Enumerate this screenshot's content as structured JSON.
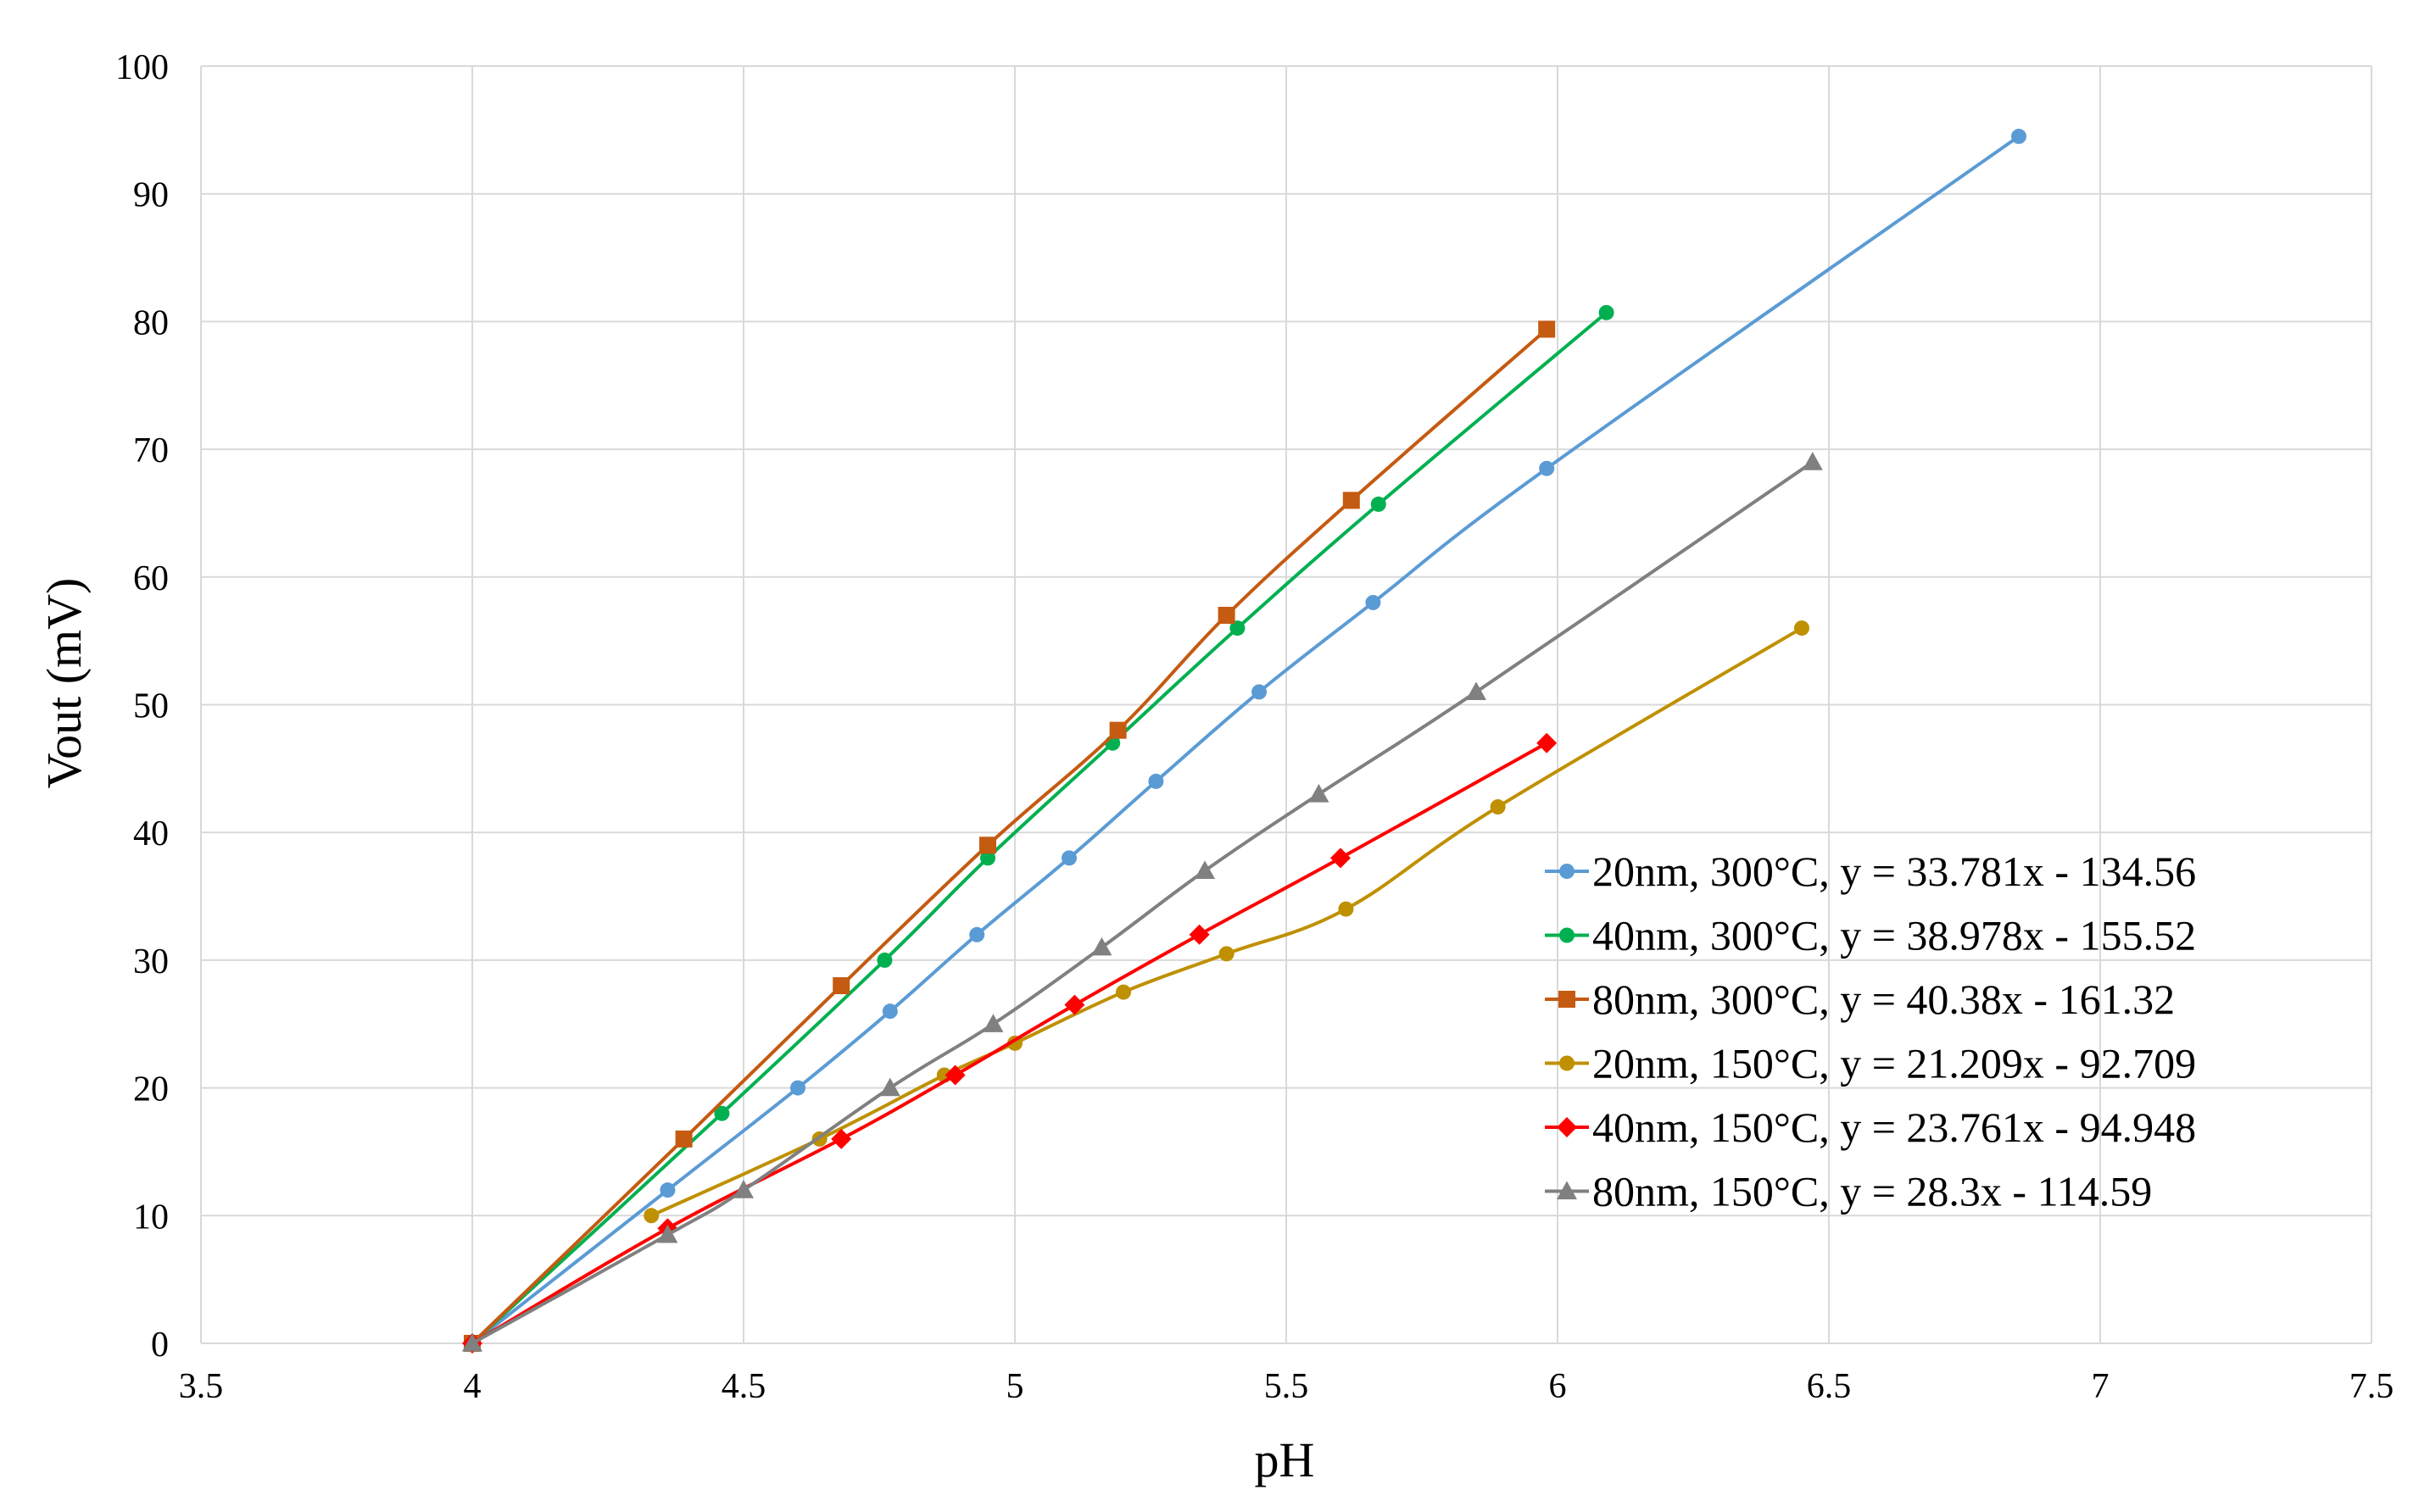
{
  "chart_data": {
    "type": "line",
    "title": "",
    "xlabel": "pH",
    "ylabel": "Vout (mV)",
    "xlim": [
      3.5,
      7.5
    ],
    "ylim": [
      0,
      100
    ],
    "xticks": [
      3.5,
      4,
      4.5,
      5,
      5.5,
      6,
      6.5,
      7,
      7.5
    ],
    "xtick_labels": [
      "3.5",
      "4",
      "4.5",
      "5",
      "5.5",
      "6",
      "6.5",
      "7",
      "7.5"
    ],
    "yticks": [
      0,
      10,
      20,
      30,
      40,
      50,
      60,
      70,
      80,
      90,
      100
    ],
    "ytick_labels": [
      "0",
      "10",
      "20",
      "30",
      "40",
      "50",
      "60",
      "70",
      "80",
      "90",
      "100"
    ],
    "grid": true,
    "legend_position": "bottom-right",
    "series": [
      {
        "name": "20nm, 300°C, y = 33.781x - 134.56",
        "color": "#5B9BD5",
        "marker": "circle",
        "x": [
          4,
          4.36,
          4.6,
          4.77,
          4.93,
          5.1,
          5.26,
          5.45,
          5.66,
          5.98,
          6.85
        ],
        "y": [
          0,
          12,
          20,
          26,
          32,
          38,
          44,
          51,
          58,
          68.5,
          94.5
        ]
      },
      {
        "name": "40nm, 300°C, y = 38.978x - 155.52",
        "color": "#00B050",
        "marker": "circle",
        "x": [
          4,
          4.46,
          4.76,
          4.95,
          5.18,
          5.41,
          5.67,
          6.09
        ],
        "y": [
          0,
          18,
          30,
          38,
          47,
          56,
          65.7,
          80.7
        ]
      },
      {
        "name": "80nm, 300°C, y = 40.38x - 161.32",
        "color": "#C55A11",
        "marker": "square",
        "x": [
          4,
          4.39,
          4.68,
          4.95,
          5.19,
          5.39,
          5.62,
          5.98
        ],
        "y": [
          0,
          16,
          28,
          39,
          48,
          57,
          66,
          79.4
        ]
      },
      {
        "name": "20nm, 150°C, y = 21.209x - 92.709",
        "color": "#BF9000",
        "marker": "circle",
        "x": [
          4.33,
          4.64,
          4.87,
          5,
          5.2,
          5.39,
          5.61,
          5.89,
          6.45
        ],
        "y": [
          10,
          16,
          21,
          23.5,
          27.5,
          30.5,
          34,
          42,
          56
        ]
      },
      {
        "name": "40nm, 150°C, y = 23.761x - 94.948",
        "color": "#FF0000",
        "marker": "diamond",
        "x": [
          4,
          4.36,
          4.68,
          4.89,
          5.11,
          5.34,
          5.6,
          5.98
        ],
        "y": [
          0,
          9,
          16,
          21,
          26.5,
          32,
          38,
          47
        ]
      },
      {
        "name": "80nm, 150°C, y = 28.3x - 114.59",
        "color": "#808080",
        "marker": "triangle",
        "x": [
          4,
          4.36,
          4.5,
          4.77,
          4.96,
          5.16,
          5.35,
          5.56,
          5.85,
          6.47
        ],
        "y": [
          0,
          8.5,
          12,
          20,
          25,
          31,
          37,
          43,
          51,
          69
        ]
      }
    ]
  }
}
